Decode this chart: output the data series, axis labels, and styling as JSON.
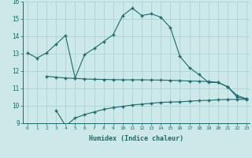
{
  "xlabel": "Humidex (Indice chaleur)",
  "bg_color": "#cce8e8",
  "line_color": "#1a6b6b",
  "grid_color": "#aacece",
  "x_min": 0,
  "x_max": 23,
  "y_min": 9,
  "y_max": 16,
  "line1_x": [
    0,
    1,
    2,
    3,
    4,
    5,
    6,
    7,
    8,
    9,
    10,
    11,
    12,
    13,
    14,
    15,
    16,
    17,
    18,
    19,
    20,
    21,
    22,
    23
  ],
  "line1_y": [
    13.05,
    12.75,
    13.05,
    13.55,
    14.05,
    11.6,
    12.95,
    13.3,
    13.7,
    14.1,
    15.2,
    15.62,
    15.2,
    15.3,
    15.1,
    14.5,
    12.85,
    12.2,
    11.8,
    11.35,
    11.35,
    11.1,
    10.6,
    10.4
  ],
  "line2_x": [
    2,
    3,
    4,
    5,
    6,
    7,
    8,
    9,
    10,
    11,
    12,
    13,
    14,
    15,
    16,
    17,
    18,
    19,
    20,
    21,
    22,
    23
  ],
  "line2_y": [
    11.7,
    11.65,
    11.6,
    11.58,
    11.55,
    11.53,
    11.52,
    11.51,
    11.5,
    11.5,
    11.5,
    11.49,
    11.48,
    11.47,
    11.45,
    11.43,
    11.42,
    11.4,
    11.35,
    11.1,
    10.5,
    10.4
  ],
  "line3_x": [
    3,
    4,
    5,
    6,
    7,
    8,
    9,
    10,
    11,
    12,
    13,
    14,
    15,
    16,
    17,
    18,
    19,
    20,
    21,
    22,
    23
  ],
  "line3_y": [
    9.75,
    8.85,
    9.3,
    9.5,
    9.65,
    9.8,
    9.9,
    9.97,
    10.05,
    10.1,
    10.15,
    10.2,
    10.22,
    10.23,
    10.27,
    10.3,
    10.32,
    10.35,
    10.37,
    10.37,
    10.37
  ]
}
